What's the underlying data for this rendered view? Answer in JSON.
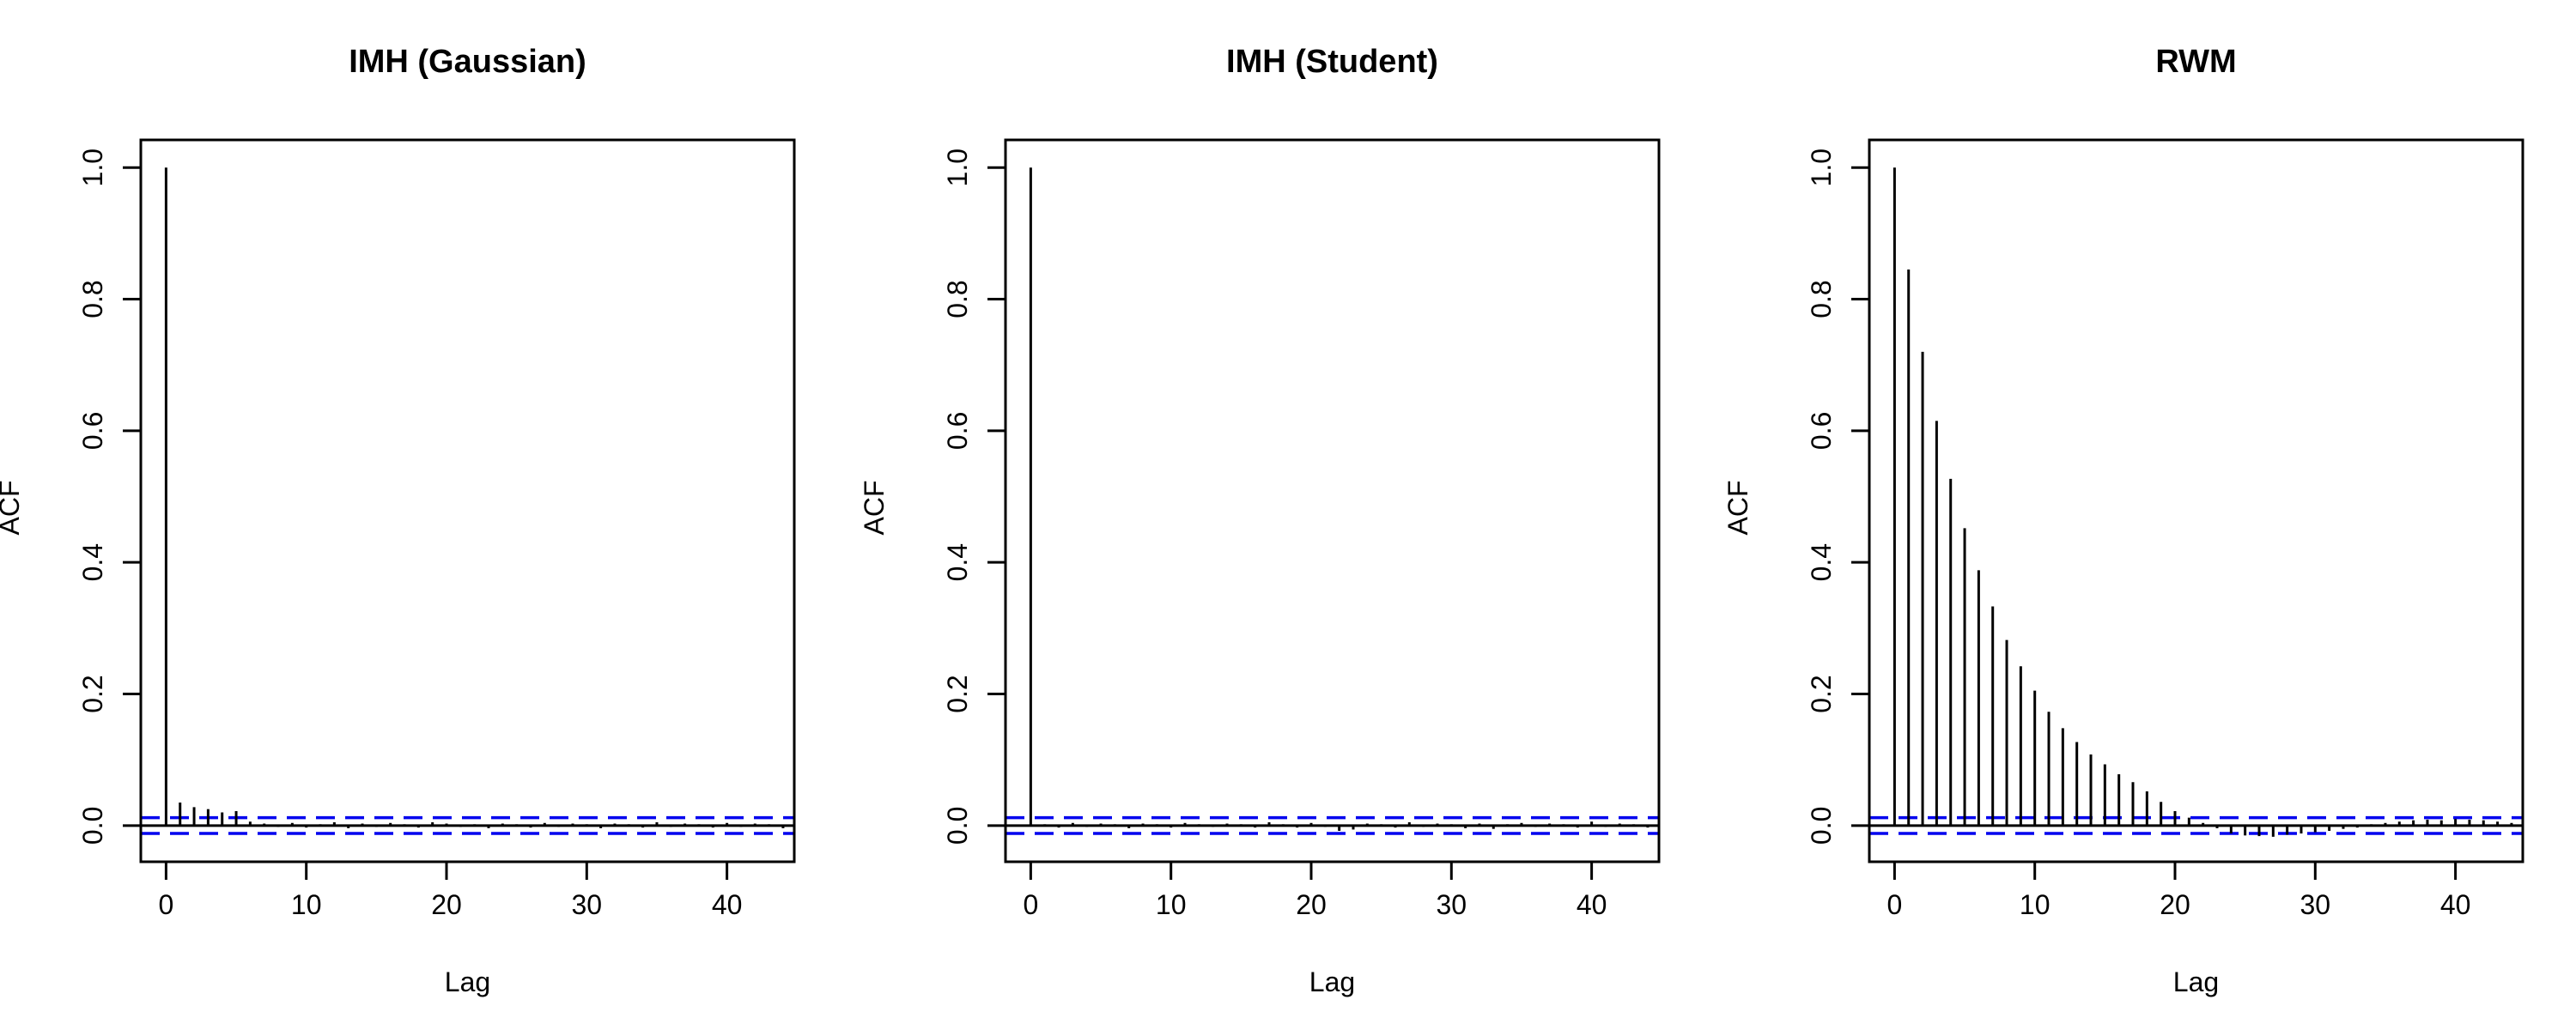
{
  "figure": {
    "title": "",
    "panel_count": 3
  },
  "chart_data": [
    {
      "type": "acf",
      "title": "IMH (Gaussian)",
      "xlabel": "Lag",
      "ylabel": "ACF",
      "xlim": [
        -1.8,
        44.8
      ],
      "ylim": [
        -0.055,
        1.042
      ],
      "xticks": [
        0,
        10,
        20,
        30,
        40
      ],
      "yticks": [
        0.0,
        0.2,
        0.4,
        0.6,
        0.8,
        1.0
      ],
      "ytick_labels": [
        "0.0",
        "0.2",
        "0.4",
        "0.6",
        "0.8",
        "1.0"
      ],
      "xtick_labels": [
        "0",
        "10",
        "20",
        "30",
        "40"
      ],
      "confidence_band": 0.012,
      "lags": [
        0,
        1,
        2,
        3,
        4,
        5,
        6,
        7,
        8,
        9,
        10,
        11,
        12,
        13,
        14,
        15,
        16,
        17,
        18,
        19,
        20,
        21,
        22,
        23,
        24,
        25,
        26,
        27,
        28,
        29,
        30,
        31,
        32,
        33,
        34,
        35,
        36,
        37,
        38,
        39,
        40,
        41,
        42,
        43,
        44
      ],
      "values": [
        1.0,
        0.035,
        0.028,
        0.025,
        0.02,
        0.022,
        0.006,
        0.003,
        -0.002,
        0.004,
        -0.003,
        0.002,
        0.005,
        -0.004,
        0.003,
        -0.002,
        0.004,
        0.002,
        -0.003,
        0.005,
        0.003,
        -0.002,
        0.002,
        -0.004,
        0.003,
        0.002,
        -0.003,
        0.004,
        -0.002,
        0.003,
        0.002,
        -0.004,
        0.003,
        0.002,
        -0.003,
        0.005,
        -0.002,
        0.003,
        0.002,
        -0.003,
        0.004,
        -0.002,
        0.003,
        0.002,
        -0.004
      ],
      "colors": {
        "spike": "#000000",
        "band": "#0000ee",
        "frame": "#000000"
      }
    },
    {
      "type": "acf",
      "title": "IMH (Student)",
      "xlabel": "Lag",
      "ylabel": "ACF",
      "xlim": [
        -1.8,
        44.8
      ],
      "ylim": [
        -0.055,
        1.042
      ],
      "xticks": [
        0,
        10,
        20,
        30,
        40
      ],
      "yticks": [
        0.0,
        0.2,
        0.4,
        0.6,
        0.8,
        1.0
      ],
      "ytick_labels": [
        "0.0",
        "0.2",
        "0.4",
        "0.6",
        "0.8",
        "1.0"
      ],
      "xtick_labels": [
        "0",
        "10",
        "20",
        "30",
        "40"
      ],
      "confidence_band": 0.012,
      "lags": [
        0,
        1,
        2,
        3,
        4,
        5,
        6,
        7,
        8,
        9,
        10,
        11,
        12,
        13,
        14,
        15,
        16,
        17,
        18,
        19,
        20,
        21,
        22,
        23,
        24,
        25,
        26,
        27,
        28,
        29,
        30,
        31,
        32,
        33,
        34,
        35,
        36,
        37,
        38,
        39,
        40,
        41,
        42,
        43,
        44
      ],
      "values": [
        1.0,
        0.002,
        -0.003,
        0.004,
        -0.002,
        0.003,
        0.002,
        -0.004,
        0.003,
        0.002,
        -0.003,
        0.004,
        0.002,
        -0.002,
        0.003,
        0.002,
        -0.003,
        0.005,
        0.002,
        -0.003,
        0.004,
        -0.002,
        -0.008,
        -0.006,
        0.003,
        0.002,
        -0.003,
        0.005,
        -0.002,
        0.003,
        0.002,
        -0.004,
        0.003,
        -0.005,
        0.002,
        0.004,
        -0.002,
        0.003,
        0.002,
        -0.003,
        0.006,
        -0.002,
        0.003,
        0.002,
        -0.003
      ],
      "colors": {
        "spike": "#000000",
        "band": "#0000ee",
        "frame": "#000000"
      }
    },
    {
      "type": "acf",
      "title": "RWM",
      "xlabel": "Lag",
      "ylabel": "ACF",
      "xlim": [
        -1.8,
        44.8
      ],
      "ylim": [
        -0.055,
        1.042
      ],
      "xticks": [
        0,
        10,
        20,
        30,
        40
      ],
      "yticks": [
        0.0,
        0.2,
        0.4,
        0.6,
        0.8,
        1.0
      ],
      "ytick_labels": [
        "0.0",
        "0.2",
        "0.4",
        "0.6",
        "0.8",
        "1.0"
      ],
      "xtick_labels": [
        "0",
        "10",
        "20",
        "30",
        "40"
      ],
      "confidence_band": 0.012,
      "lags": [
        0,
        1,
        2,
        3,
        4,
        5,
        6,
        7,
        8,
        9,
        10,
        11,
        12,
        13,
        14,
        15,
        16,
        17,
        18,
        19,
        20,
        21,
        22,
        23,
        24,
        25,
        26,
        27,
        28,
        29,
        30,
        31,
        32,
        33,
        34,
        35,
        36,
        37,
        38,
        39,
        40,
        41,
        42,
        43,
        44
      ],
      "values": [
        1.0,
        0.845,
        0.72,
        0.615,
        0.527,
        0.452,
        0.388,
        0.333,
        0.282,
        0.242,
        0.205,
        0.173,
        0.148,
        0.127,
        0.108,
        0.093,
        0.078,
        0.066,
        0.052,
        0.036,
        0.022,
        0.012,
        0.004,
        -0.004,
        -0.012,
        -0.015,
        -0.016,
        -0.017,
        -0.014,
        -0.012,
        -0.01,
        -0.008,
        -0.005,
        -0.003,
        0.002,
        0.004,
        0.006,
        0.008,
        0.009,
        0.008,
        0.01,
        0.009,
        0.008,
        0.006,
        0.004
      ],
      "colors": {
        "spike": "#000000",
        "band": "#0000ee",
        "frame": "#000000"
      }
    }
  ]
}
